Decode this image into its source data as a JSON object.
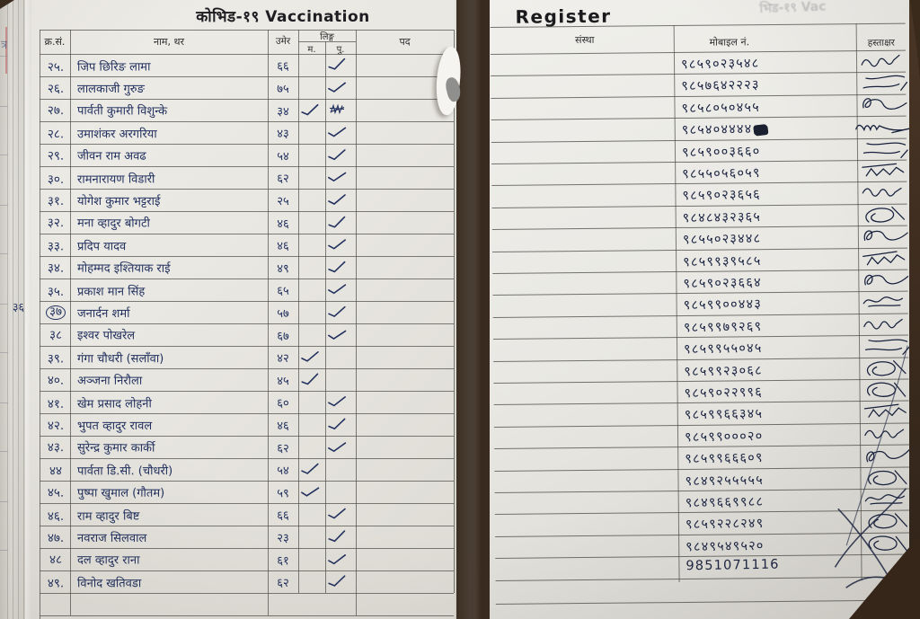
{
  "left_page": {
    "title": "कोभिड-१९ Vaccination",
    "headers": {
      "serial": "क्र.सं.",
      "name": "नाम, थर",
      "age": "उमेर",
      "gender": "लिङ्ग",
      "female": "म.",
      "male": "पु.",
      "post": "पद"
    }
  },
  "right_page": {
    "title": "Register",
    "ghost_text": "भिड-१९ Vac",
    "headers": {
      "organization": "संस्था",
      "mobile": "मोबाइल नं.",
      "signature": "हस्ताक्षर"
    }
  },
  "ink_color": "#22315f",
  "rows": [
    {
      "sn": "२५.",
      "name": "जिप छिरिङ लामा",
      "age": "६६",
      "sex": "m",
      "mobile": "९८५९०२३५४८",
      "sig": 5
    },
    {
      "sn": "२६.",
      "name": "लालकाजी गुरुङ",
      "age": "७५",
      "sex": "m",
      "mobile": "९८५७६४२२२३",
      "sig": 6
    },
    {
      "sn": "२७.",
      "name": "पार्वती कुमारी विशुन्के",
      "age": "३४",
      "sex": "f",
      "scratched": true,
      "mobile": "९८५८०५०४५५",
      "sig": 2
    },
    {
      "sn": "२८.",
      "name": "उमाशंकर अरगरिया",
      "age": "४३",
      "sex": "m",
      "mobile": "९८५४०४४४४",
      "blot": true,
      "sig": 7
    },
    {
      "sn": "२९.",
      "name": "जीवन राम अवढ",
      "age": "५४",
      "sex": "m",
      "mobile": "९८५९००३६६०",
      "sig": 6
    },
    {
      "sn": "३०.",
      "name": "रामनारायण विडारी",
      "age": "६२",
      "sex": "m",
      "mobile": "९८५५०५६०५९",
      "sig": 3
    },
    {
      "sn": "३१.",
      "name": "योगेश कुमार भट्टराई",
      "age": "२५",
      "sex": "m",
      "mobile": "९८५९०२३६५६",
      "sig": 5
    },
    {
      "sn": "३२.",
      "name": "मना व्हादुर बोगटी",
      "age": "४६",
      "sex": "m",
      "mobile": "९८४८४३२३६५",
      "sig": 4
    },
    {
      "sn": "३३.",
      "name": "प्रदिप यादव",
      "age": "४६",
      "sex": "m",
      "mobile": "९८५५०२३४४८",
      "sig": 2
    },
    {
      "sn": "३४.",
      "name": "मोहम्मद इश्तियाक राई",
      "age": "४९",
      "sex": "m",
      "mobile": "९८५९९३९५८५",
      "sig": 3
    },
    {
      "sn": "३५.",
      "name": "प्रकाश मान सिंह",
      "age": "६५",
      "sex": "m",
      "mobile": "९८५९०२३६६४",
      "sig": 2
    },
    {
      "sn": "३७",
      "name": "जनार्दन शर्मा",
      "age": "५७",
      "sex": "m",
      "circled": true,
      "margin_note": "३६",
      "mobile": "९८५९९००४४३",
      "sig": 1
    },
    {
      "sn": "३८",
      "name": "इश्वर पोखरेल",
      "age": "६७",
      "sex": "m",
      "mobile": "९८५९९७९२६९",
      "sig": 5
    },
    {
      "sn": "३९.",
      "name": "गंगा चौधरी (सलाँवा)",
      "age": "४२",
      "sex": "f",
      "mobile": "९८५९९५५०४५",
      "sig": 6
    },
    {
      "sn": "४०.",
      "name": "अञ्जना निरौला",
      "age": "४५",
      "sex": "f",
      "mobile": "९८५९९२३०६८",
      "sig": 4
    },
    {
      "sn": "४१.",
      "name": "खेम प्रसाद लोहनी",
      "age": "६०",
      "sex": "m",
      "mobile": "९८५९०२२९९६",
      "sig": 4
    },
    {
      "sn": "४२.",
      "name": "भुपत व्हादुर रावल",
      "age": "४६",
      "sex": "m",
      "mobile": "९८५९९६६३४५",
      "sig": 3
    },
    {
      "sn": "४३.",
      "name": "सुरेन्द्र कुमार कार्की",
      "age": "६२",
      "sex": "m",
      "mobile": "९८५९९०००२०",
      "sig": 5
    },
    {
      "sn": "४४",
      "name": "पार्वता डि.सी. (चौधरी)",
      "age": "५४",
      "sex": "f",
      "mobile": "९८५९९६६६०९",
      "sig": 2
    },
    {
      "sn": "४५.",
      "name": "पुष्पा खुमाल (गौतम)",
      "age": "५९",
      "sex": "f",
      "mobile": "९८४९२५५५५५",
      "sig": 4
    },
    {
      "sn": "४६.",
      "name": "राम व्हादुर बिष्ट",
      "age": "६६",
      "sex": "m",
      "mobile": "९८४९६६९९८८",
      "sig": 1
    },
    {
      "sn": "४७.",
      "name": "नवराज सिलवाल",
      "age": "२३",
      "sex": "m",
      "mobile": "९८५९२२८२४९",
      "sig": 4
    },
    {
      "sn": "४८",
      "name": "दल व्हादुर राना",
      "age": "६१",
      "sex": "m",
      "mobile": "९८४९५४९५२०",
      "sig": 4
    },
    {
      "sn": "४९.",
      "name": "विनोद खतिवडा",
      "age": "६२",
      "sex": "m",
      "mobile": "9851071116",
      "sig": 0
    }
  ]
}
